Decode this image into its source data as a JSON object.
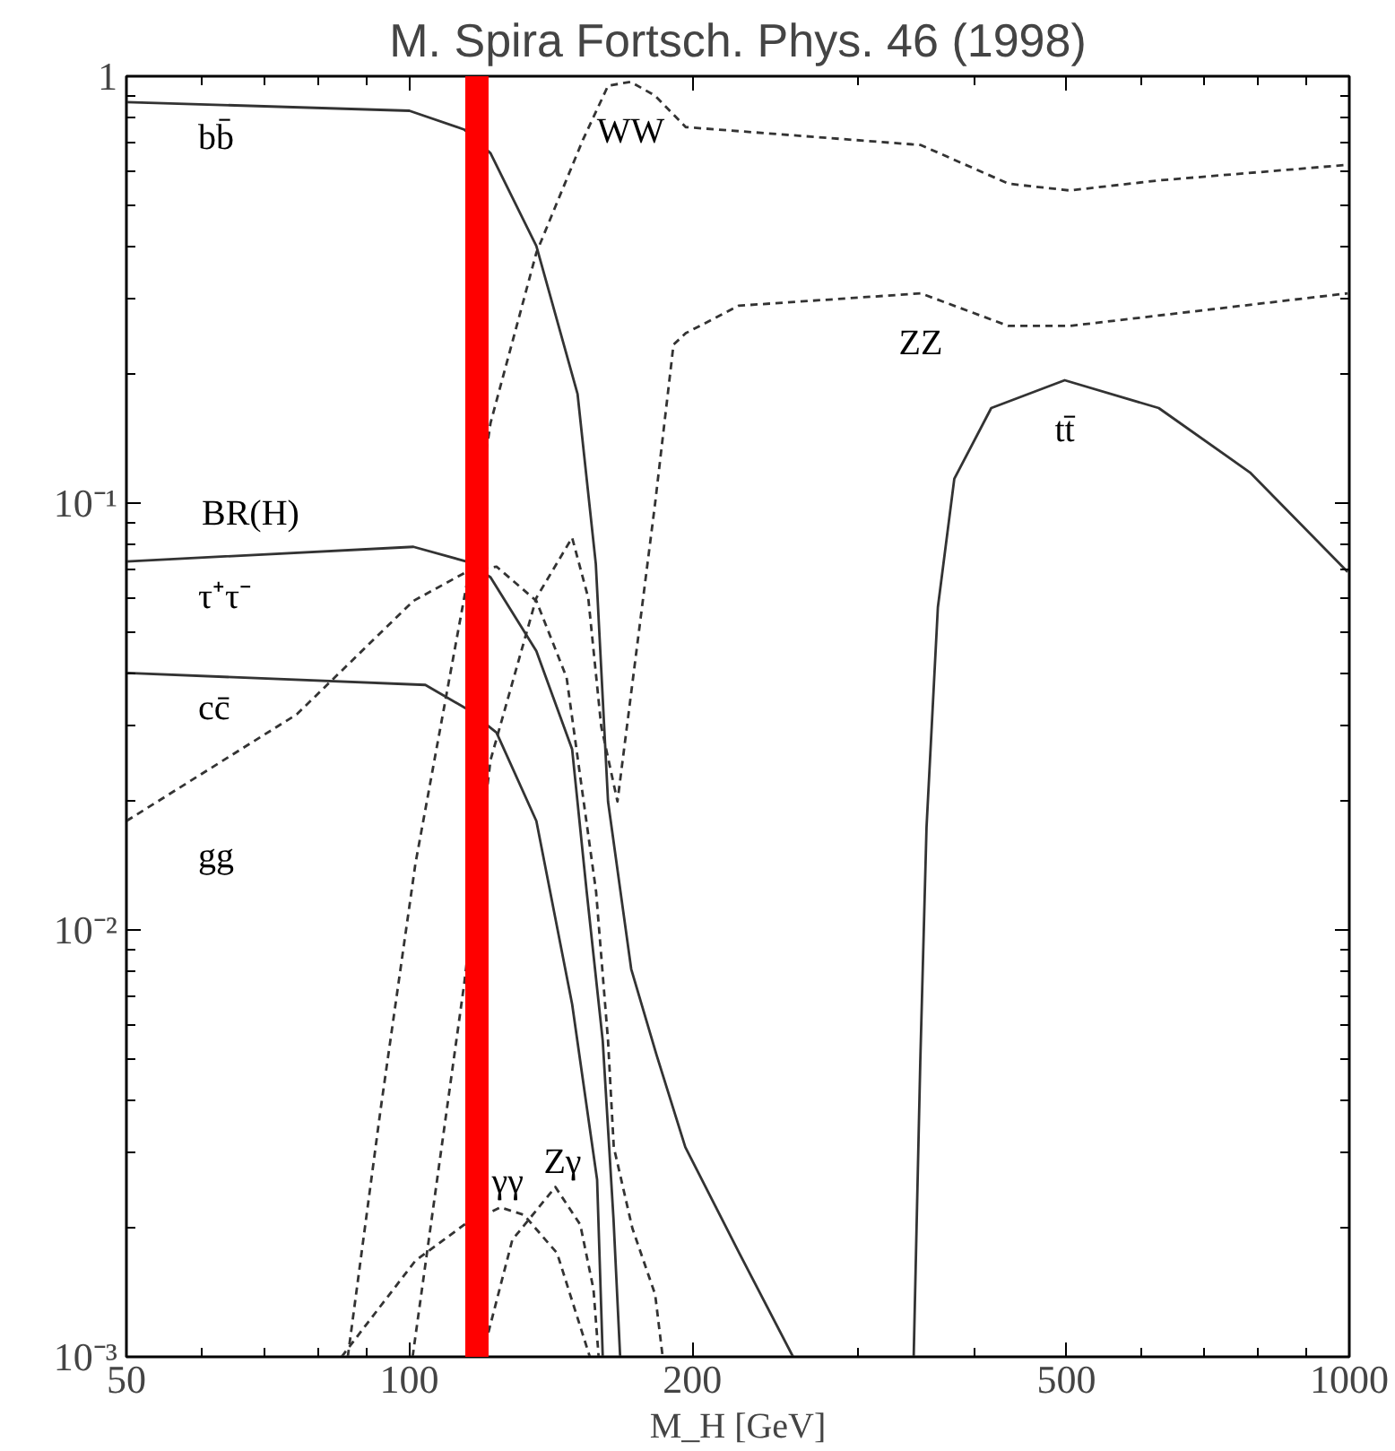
{
  "chart_data": {
    "type": "line",
    "title": "M. Spira Fortsch. Phys. 46 (1998)",
    "xlabel": "M_H [GeV]",
    "log": "xy",
    "grid": false,
    "xlim": [
      50,
      1000
    ],
    "ylim": [
      0.001,
      1
    ],
    "xticks": [
      50,
      {
        "value": 60,
        "label": null
      },
      {
        "value": 70,
        "label": null
      },
      {
        "value": 80,
        "label": null
      },
      {
        "value": 90,
        "label": null
      },
      100,
      200,
      {
        "value": 300,
        "label": null
      },
      {
        "value": 400,
        "label": null
      },
      500,
      {
        "value": 600,
        "label": null
      },
      {
        "value": 700,
        "label": null
      },
      {
        "value": 800,
        "label": null
      },
      {
        "value": 900,
        "label": null
      },
      1000
    ],
    "yticks": [
      {
        "value": 0.001,
        "label": "10⁻³"
      },
      {
        "value": 0.002,
        "label": null
      },
      {
        "value": 0.003,
        "label": null
      },
      {
        "value": 0.004,
        "label": null
      },
      {
        "value": 0.005,
        "label": null
      },
      {
        "value": 0.006,
        "label": null
      },
      {
        "value": 0.007,
        "label": null
      },
      {
        "value": 0.008,
        "label": null
      },
      {
        "value": 0.009,
        "label": null
      },
      {
        "value": 0.01,
        "label": "10⁻²"
      },
      {
        "value": 0.02,
        "label": null
      },
      {
        "value": 0.03,
        "label": null
      },
      {
        "value": 0.04,
        "label": null
      },
      {
        "value": 0.05,
        "label": null
      },
      {
        "value": 0.06,
        "label": null
      },
      {
        "value": 0.07,
        "label": null
      },
      {
        "value": 0.08,
        "label": null
      },
      {
        "value": 0.09,
        "label": null
      },
      {
        "value": 0.1,
        "label": "10⁻¹"
      },
      {
        "value": 0.2,
        "label": null
      },
      {
        "value": 0.3,
        "label": null
      },
      {
        "value": 0.4,
        "label": null
      },
      {
        "value": 0.5,
        "label": null
      },
      {
        "value": 0.6,
        "label": null
      },
      {
        "value": 0.7,
        "label": null
      },
      {
        "value": 0.8,
        "label": null
      },
      {
        "value": 0.9,
        "label": null
      },
      1
    ],
    "series": [
      {
        "name": "bb̄",
        "color": "#333333",
        "line_style": "solid",
        "x": [
          50,
          100,
          114.4,
          122,
          136.5,
          151,
          157.9,
          162.7,
          172.2,
          183.2,
          196.6,
          224.4,
          256
        ],
        "values": [
          0.87,
          0.83,
          0.75,
          0.66,
          0.4,
          0.18,
          0.072,
          0.02,
          0.0081,
          0.0051,
          0.0031,
          0.00175,
          0.001
        ]
      },
      {
        "name": "τ⁺τ⁻",
        "color": "#333333",
        "line_style": "solid",
        "x": [
          50,
          101,
          115,
          122,
          136.5,
          149,
          154.4,
          160.6,
          164.9,
          167.6
        ],
        "values": [
          0.073,
          0.079,
          0.073,
          0.067,
          0.045,
          0.0265,
          0.0123,
          0.0055,
          0.0021,
          0.001
        ]
      },
      {
        "name": "cc̄",
        "color": "#333333",
        "line_style": "solid",
        "x": [
          50,
          104,
          115,
          123.8,
          136.5,
          149,
          158.4,
          160.6
        ],
        "values": [
          0.04,
          0.0375,
          0.033,
          0.029,
          0.018,
          0.0067,
          0.0026,
          0.001
        ]
      },
      {
        "name": "tt̄",
        "color": "#333333",
        "line_style": "solid",
        "x": [
          344,
          349.6,
          355,
          365,
          380,
          416,
          498,
          627,
          784,
          996
        ],
        "values": [
          0.001,
          0.0049,
          0.0174,
          0.057,
          0.114,
          0.167,
          0.194,
          0.167,
          0.118,
          0.069
        ]
      },
      {
        "name": "gg",
        "color": "#333333",
        "line_style": "dashed",
        "x": [
          50,
          75.9,
          101,
          115,
          123.8,
          136.5,
          147,
          158,
          162.7,
          165,
          172.7,
          182.6,
          186
        ],
        "values": [
          0.018,
          0.032,
          0.059,
          0.069,
          0.071,
          0.059,
          0.039,
          0.0123,
          0.0055,
          0.0031,
          0.002,
          0.0014,
          0.001
        ]
      },
      {
        "name": "WW",
        "color": "#333333",
        "line_style": "dashed",
        "x": [
          86,
          93.2,
          101.5,
          115,
          122,
          136.5,
          153,
          162.7,
          172,
          182.6,
          196.8,
          350,
          434,
          504,
          627,
          996
        ],
        "values": [
          0.001,
          0.0038,
          0.0143,
          0.064,
          0.154,
          0.386,
          0.71,
          0.95,
          0.97,
          0.9,
          0.76,
          0.69,
          0.56,
          0.54,
          0.57,
          0.62
        ]
      },
      {
        "name": "ZZ",
        "color": "#333333",
        "line_style": "dashed",
        "x": [
          100.8,
          114.4,
          122,
          136.5,
          149,
          155,
          160,
          166.5,
          182.6,
          191,
          196.8,
          224,
          350,
          434,
          504,
          996
        ],
        "values": [
          0.001,
          0.0075,
          0.025,
          0.06,
          0.083,
          0.06,
          0.03,
          0.02,
          0.1,
          0.235,
          0.25,
          0.29,
          0.31,
          0.26,
          0.26,
          0.31
        ]
      },
      {
        "name": "γγ",
        "color": "#333333",
        "line_style": "dashed",
        "x": [
          84.7,
          101.5,
          114.4,
          125,
          132.4,
          143.6,
          155.6
        ],
        "values": [
          0.001,
          0.00168,
          0.00204,
          0.00224,
          0.00215,
          0.00175,
          0.001
        ]
      },
      {
        "name": "Zγ",
        "color": "#333333",
        "line_style": "dashed",
        "x": [
          119.5,
          128.7,
          143,
          152,
          157,
          159
        ],
        "values": [
          0.001,
          0.00188,
          0.0025,
          0.00204,
          0.00144,
          0.001
        ]
      }
    ],
    "ref_lines": [
      {
        "axis": "x",
        "value": 118,
        "color": "#ff0000"
      }
    ],
    "annotations": [
      "BR(H)"
    ]
  }
}
